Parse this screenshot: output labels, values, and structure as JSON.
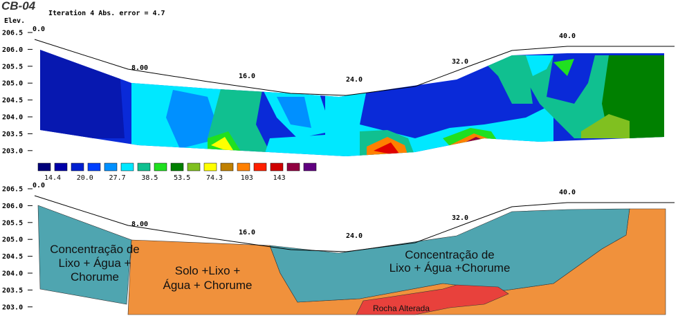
{
  "title": "CB-04",
  "subtitle": "Iteration 4 Abs. error = 4.7",
  "y_axis_label": "Elev.",
  "elevation_ticks": [
    "206.5",
    "206.0",
    "205.5",
    "205.0",
    "204.5",
    "204.0",
    "203.5",
    "203.0"
  ],
  "distance_labels": [
    "0.0",
    "8.00",
    "16.0",
    "24.0",
    "32.0",
    "40.0"
  ],
  "color_scale": {
    "labels": [
      "14.4",
      "20.0",
      "27.7",
      "38.5",
      "53.5",
      "74.3",
      "103",
      "143"
    ]
  },
  "zones": [
    {
      "lines": [
        "Concentração de",
        "Lixo + Água +",
        "Chorume"
      ]
    },
    {
      "lines": [
        "Solo +Lixo +",
        "Água + Chorume"
      ]
    },
    {
      "lines": [
        "Concentração de",
        "Lixo + Água +Chorume"
      ]
    },
    {
      "lines": [
        "Rocha Alterada"
      ]
    }
  ]
}
